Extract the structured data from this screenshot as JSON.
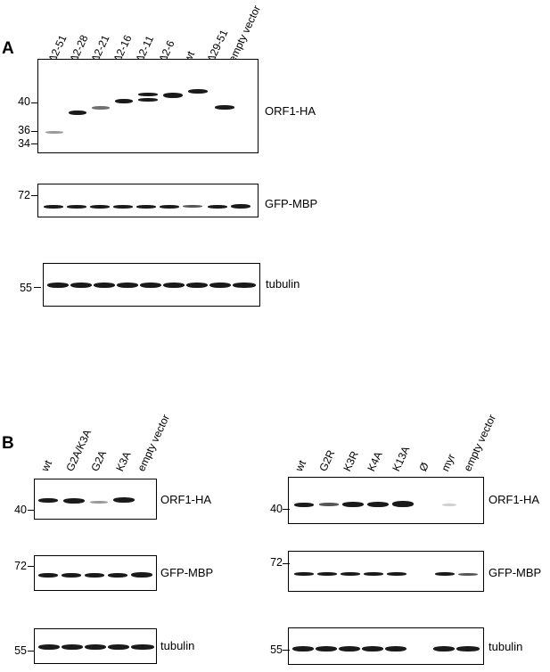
{
  "panel_a": {
    "letter": "A",
    "lanes": [
      "Δ2-51",
      "Δ2-28",
      "Δ2-21",
      "Δ2-16",
      "Δ2-11",
      "Δ2-6",
      "wt",
      "Δ29-51",
      "empty vector"
    ],
    "blots": {
      "orf1": {
        "label": "ORF1-HA",
        "markers": [
          "40",
          "36",
          "34"
        ]
      },
      "gfp": {
        "label": "GFP-MBP",
        "markers": [
          "72"
        ]
      },
      "tubulin": {
        "label": "tubulin",
        "markers": [
          "55"
        ]
      }
    }
  },
  "panel_b": {
    "letter": "B",
    "left": {
      "lanes": [
        "wt",
        "G2A/K3A",
        "G2A",
        "K3A",
        "empty vector"
      ],
      "blots": {
        "orf1": {
          "label": "ORF1-HA",
          "markers": [
            "40"
          ]
        },
        "gfp": {
          "label": "GFP-MBP",
          "markers": [
            "72"
          ]
        },
        "tubulin": {
          "label": "tubulin",
          "markers": [
            "55"
          ]
        }
      }
    },
    "right": {
      "lanes": [
        "wt",
        "G2R",
        "K3R",
        "K4A",
        "K13A",
        "Ø",
        "myr",
        "empty vector"
      ],
      "blots": {
        "orf1": {
          "label": "ORF1-HA",
          "markers": [
            "40"
          ]
        },
        "gfp": {
          "label": "GFP-MBP",
          "markers": [
            "72"
          ]
        },
        "tubulin": {
          "label": "tubulin",
          "markers": [
            "55"
          ]
        }
      }
    }
  }
}
